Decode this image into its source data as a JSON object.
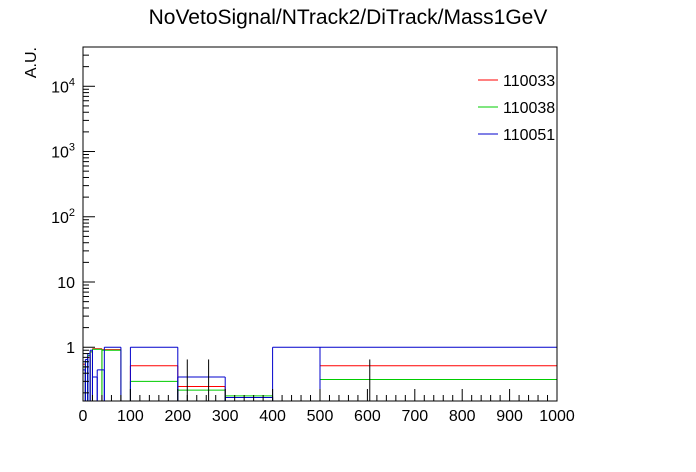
{
  "chart_data": {
    "type": "line",
    "title": "NoVetoSignal/NTrack2/DiTrack/Mass1GeV",
    "xlabel": "",
    "ylabel": "A.U.",
    "xlim": [
      0,
      1000
    ],
    "ylim": [
      0.15,
      40000
    ],
    "yscale": "log",
    "x_ticks": [
      0,
      100,
      200,
      300,
      400,
      500,
      600,
      700,
      800,
      900,
      1000
    ],
    "x_tick_labels": [
      "0",
      "100",
      "200",
      "300",
      "400",
      "500",
      "600",
      "700",
      "800",
      "900",
      "1000"
    ],
    "y_ticks": [
      1,
      10,
      100,
      1000,
      10000
    ],
    "y_tick_labels": [
      {
        "base": "1",
        "exp": ""
      },
      {
        "base": "10",
        "exp": ""
      },
      {
        "base": "10",
        "exp": "2"
      },
      {
        "base": "10",
        "exp": "3"
      },
      {
        "base": "10",
        "exp": "4"
      }
    ],
    "legend_position": "top-right",
    "grid": false,
    "series": [
      {
        "name": "110033",
        "color": "#ff0000",
        "bins": [
          {
            "x0": 0,
            "x1": 5,
            "y": 0.55
          },
          {
            "x0": 5,
            "x1": 10,
            "y": 0.5
          },
          {
            "x0": 10,
            "x1": 15,
            "y": 0.7
          },
          {
            "x0": 15,
            "x1": 20,
            "y": 0.85
          },
          {
            "x0": 20,
            "x1": 40,
            "y": 0.95
          },
          {
            "x0": 40,
            "x1": 80,
            "y": 0.92
          },
          {
            "x0": 100,
            "x1": 200,
            "y": 0.52
          },
          {
            "x0": 200,
            "x1": 300,
            "y": 0.25
          },
          {
            "x0": 300,
            "x1": 400,
            "y": 0.17
          },
          {
            "x0": 500,
            "x1": 1000,
            "y": 0.52
          }
        ]
      },
      {
        "name": "110038",
        "color": "#00cc00",
        "bins": [
          {
            "x0": 0,
            "x1": 5,
            "y": 0.5
          },
          {
            "x0": 5,
            "x1": 10,
            "y": 0.6
          },
          {
            "x0": 10,
            "x1": 15,
            "y": 0.75
          },
          {
            "x0": 15,
            "x1": 20,
            "y": 0.85
          },
          {
            "x0": 20,
            "x1": 40,
            "y": 0.93
          },
          {
            "x0": 40,
            "x1": 80,
            "y": 0.9
          },
          {
            "x0": 100,
            "x1": 200,
            "y": 0.3
          },
          {
            "x0": 200,
            "x1": 300,
            "y": 0.22
          },
          {
            "x0": 300,
            "x1": 400,
            "y": 0.18
          },
          {
            "x0": 500,
            "x1": 1000,
            "y": 0.32
          }
        ]
      },
      {
        "name": "110051",
        "color": "#0000cc",
        "bins": [
          {
            "x0": 0,
            "x1": 5,
            "y": 0.45
          },
          {
            "x0": 5,
            "x1": 10,
            "y": 0.65
          },
          {
            "x0": 10,
            "x1": 15,
            "y": 0.8
          },
          {
            "x0": 15,
            "x1": 20,
            "y": 0.9
          },
          {
            "x0": 20,
            "x1": 30,
            "y": 0.35
          },
          {
            "x0": 30,
            "x1": 45,
            "y": 0.45
          },
          {
            "x0": 45,
            "x1": 80,
            "y": 1.0
          },
          {
            "x0": 100,
            "x1": 200,
            "y": 1.0
          },
          {
            "x0": 200,
            "x1": 300,
            "y": 0.35
          },
          {
            "x0": 300,
            "x1": 400,
            "y": 0.17
          },
          {
            "x0": 400,
            "x1": 500,
            "y": 1.0
          },
          {
            "x0": 500,
            "x1": 1000,
            "y": 1.0
          }
        ]
      }
    ],
    "error_bars": [
      {
        "x": 220,
        "y_low": 0.15,
        "y_high": 0.65
      },
      {
        "x": 265,
        "y_low": 0.15,
        "y_high": 0.65
      },
      {
        "x": 605,
        "y_low": 0.15,
        "y_high": 0.65
      }
    ]
  }
}
